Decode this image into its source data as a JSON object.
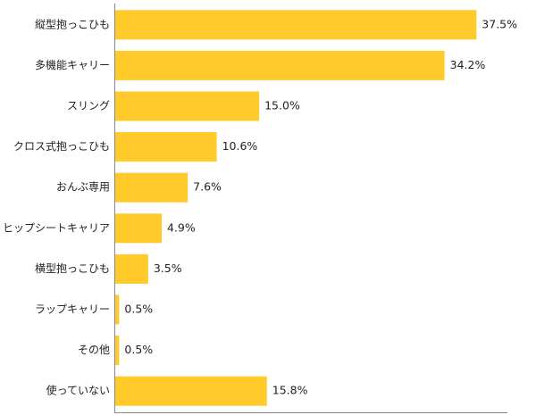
{
  "chart_data": {
    "type": "bar",
    "orientation": "horizontal",
    "categories": [
      "縦型抱っこひも",
      "多機能キャリー",
      "スリング",
      "クロス式抱っこひも",
      "おんぶ専用",
      "ヒップシートキャリア",
      "横型抱っこひも",
      "ラップキャリー",
      "その他",
      "使っていない"
    ],
    "values": [
      37.5,
      34.2,
      15.0,
      10.6,
      7.6,
      4.9,
      3.5,
      0.5,
      0.5,
      15.8
    ],
    "value_labels": [
      "37.5%",
      "34.2%",
      "15.0%",
      "10.6%",
      "7.6%",
      "4.9%",
      "3.5%",
      "0.5%",
      "0.5%",
      "15.8%"
    ],
    "xlim": [
      0,
      40
    ],
    "grid": false,
    "bar_color": "#FFCA2A",
    "axis_color": "#888888"
  }
}
